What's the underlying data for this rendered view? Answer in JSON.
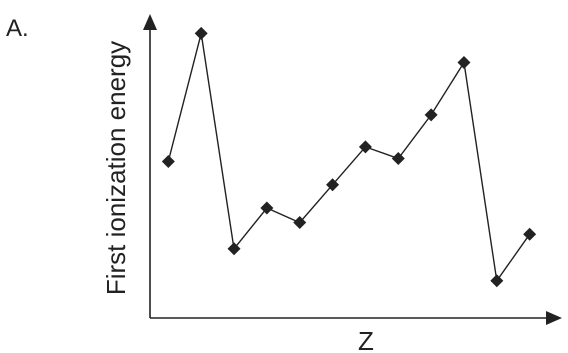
{
  "panel_label": "A.",
  "colors": {
    "ink": "#222222",
    "background": "#ffffff"
  },
  "chart_data": {
    "type": "line",
    "title": "",
    "xlabel": "Z",
    "ylabel": "First ionization energy",
    "axis_ticks": "none",
    "grid": false,
    "legend": "none",
    "marker": "diamond",
    "xlim": [
      0,
      13
    ],
    "ylim": [
      0,
      100
    ],
    "series": [
      {
        "x": [
          1,
          2,
          3,
          4,
          5,
          6,
          7,
          8,
          9,
          10,
          11,
          12
        ],
        "y": [
          55,
          99,
          25,
          39,
          34,
          47,
          60,
          56,
          71,
          89,
          14,
          30
        ]
      }
    ]
  }
}
